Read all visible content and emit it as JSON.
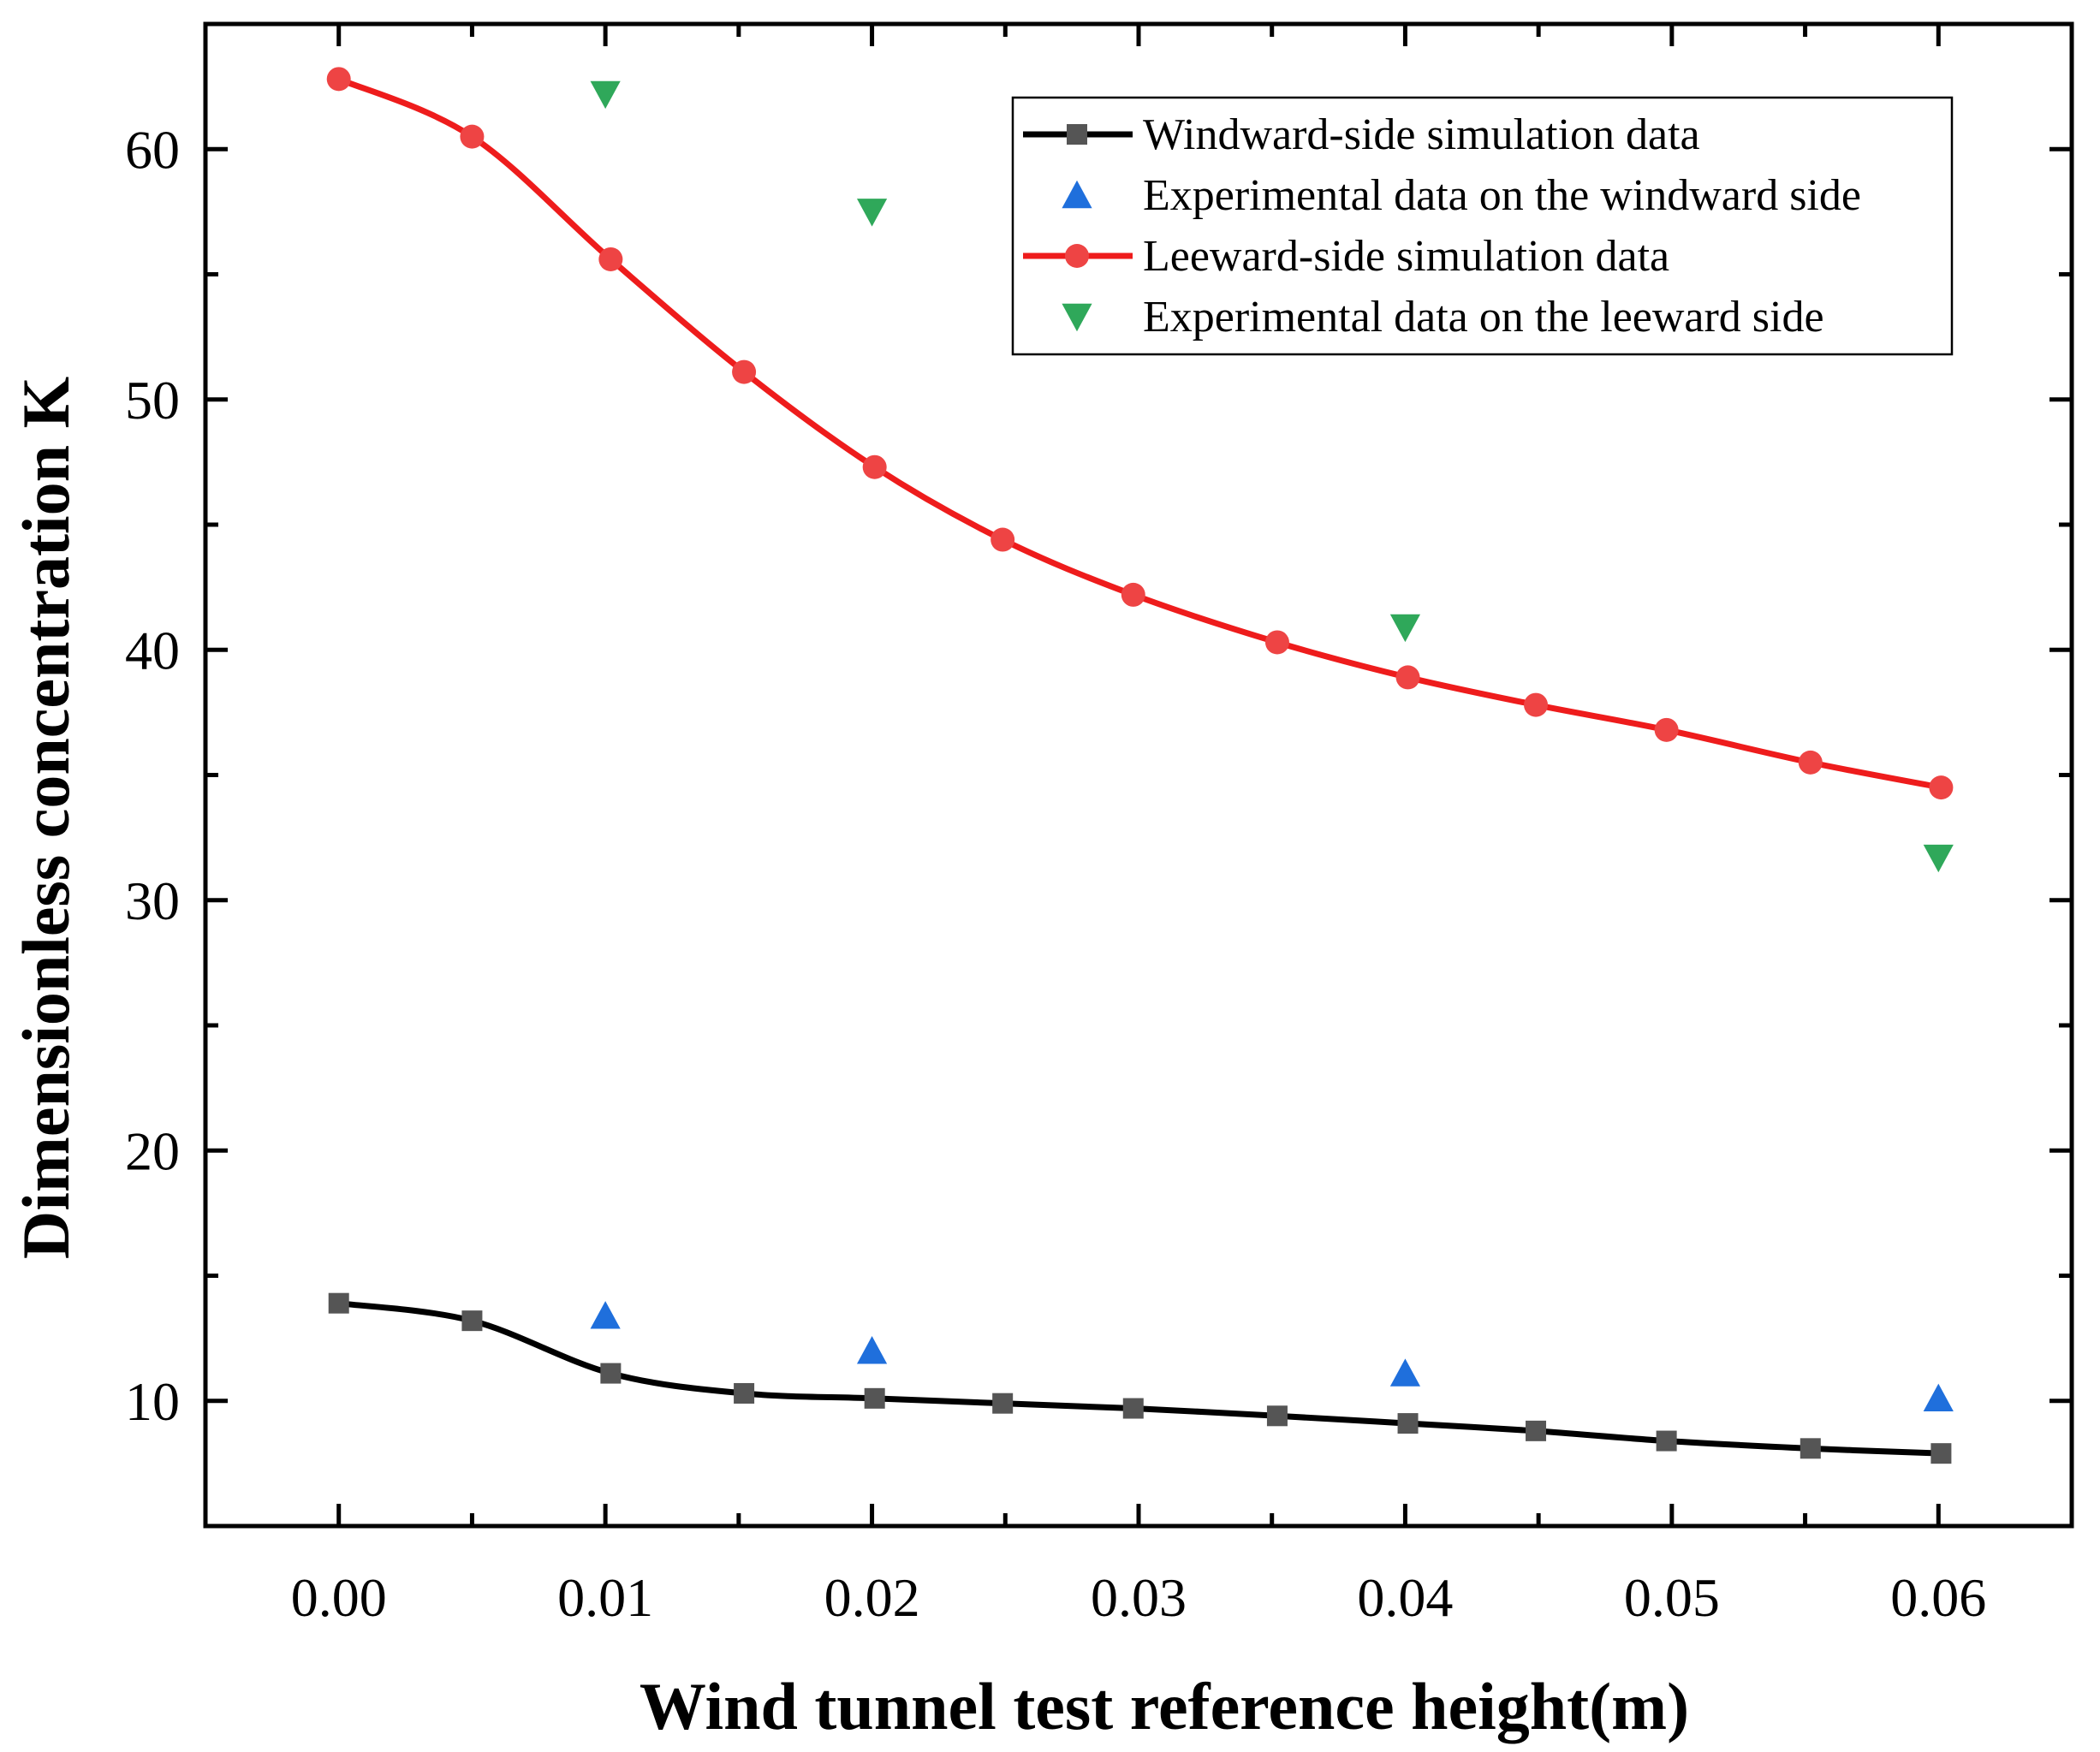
{
  "chart_data": {
    "type": "line",
    "title": "",
    "xlabel": "Wind tunnel test reference height(m)",
    "ylabel": "Dimensionless concentration K",
    "xlim": [
      -0.005,
      0.065
    ],
    "ylim": [
      5,
      65
    ],
    "x_ticks": [
      0.0,
      0.01,
      0.02,
      0.03,
      0.04,
      0.05,
      0.06
    ],
    "x_tick_labels": [
      "0.00",
      "0.01",
      "0.02",
      "0.03",
      "0.04",
      "0.05",
      "0.06"
    ],
    "y_ticks": [
      10,
      20,
      30,
      40,
      50,
      60
    ],
    "y_tick_labels": [
      "10",
      "20",
      "30",
      "40",
      "50",
      "60"
    ],
    "grid": false,
    "legend_position": "top-right",
    "series": [
      {
        "name": "Windward-side simulation data",
        "style": "line-marker",
        "marker": "square",
        "color": "#000000",
        "marker_color": "#555555",
        "x": [
          0.0,
          0.005,
          0.0102,
          0.0152,
          0.0201,
          0.0249,
          0.0298,
          0.0352,
          0.0401,
          0.0449,
          0.0498,
          0.0552,
          0.0601
        ],
        "y": [
          13.9,
          13.2,
          11.1,
          10.3,
          10.1,
          9.9,
          9.7,
          9.4,
          9.1,
          8.8,
          8.4,
          8.1,
          7.9
        ]
      },
      {
        "name": "Experimental data on the windward side",
        "style": "marker",
        "marker": "triangle-up",
        "color": "#1f6fdc",
        "x": [
          0.01,
          0.02,
          0.04,
          0.06
        ],
        "y": [
          13.4,
          12.0,
          11.1,
          10.1
        ]
      },
      {
        "name": "Leeward-side simulation data",
        "style": "line-marker",
        "marker": "circle",
        "color": "#ee1c1c",
        "marker_color": "#ee4444",
        "x": [
          0.0,
          0.005,
          0.0102,
          0.0152,
          0.0201,
          0.0249,
          0.0298,
          0.0352,
          0.0401,
          0.0449,
          0.0498,
          0.0552,
          0.0601
        ],
        "y": [
          62.8,
          60.5,
          55.6,
          51.1,
          47.3,
          44.4,
          42.2,
          40.3,
          38.9,
          37.8,
          36.8,
          35.5,
          34.5
        ]
      },
      {
        "name": "Experimental data on the leeward side",
        "style": "marker",
        "marker": "triangle-down",
        "color": "#2fa85a",
        "x": [
          0.01,
          0.02,
          0.04,
          0.06
        ],
        "y": [
          62.2,
          57.5,
          40.9,
          31.7
        ]
      }
    ]
  }
}
